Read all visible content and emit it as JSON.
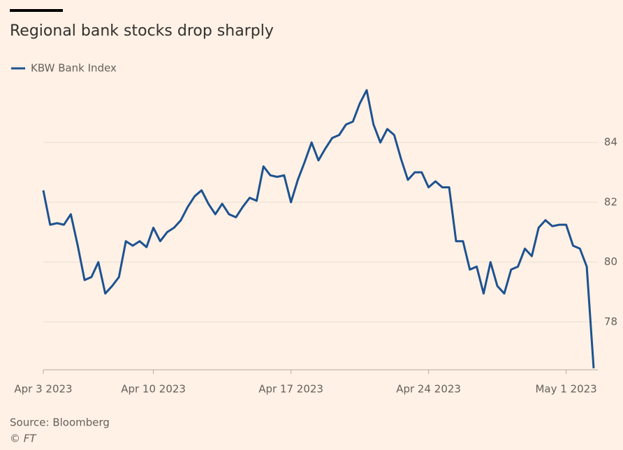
{
  "chart_data": {
    "type": "line",
    "title": "Regional bank stocks drop sharply",
    "source": "Source: Bloomberg",
    "copyright": "© FT",
    "categories": [
      "Apr 3 2023",
      null,
      null,
      null,
      null,
      null,
      null,
      null,
      null,
      null,
      null,
      null,
      null,
      null,
      null,
      null,
      "Apr 10 2023",
      null,
      null,
      null,
      null,
      null,
      null,
      null,
      null,
      null,
      null,
      null,
      null,
      null,
      null,
      null,
      null,
      null,
      null,
      null,
      "Apr 17 2023",
      null,
      null,
      null,
      null,
      null,
      null,
      null,
      null,
      null,
      null,
      null,
      null,
      null,
      null,
      null,
      null,
      null,
      null,
      null,
      "Apr 24 2023",
      null,
      null,
      null,
      null,
      null,
      null,
      null,
      null,
      null,
      null,
      null,
      null,
      null,
      null,
      null,
      null,
      null,
      null,
      null,
      "May 1 2023",
      null,
      null,
      null,
      null
    ],
    "series": [
      {
        "name": "KBW Bank Index",
        "color": "#1d5290",
        "values": [
          82.4,
          81.25,
          81.3,
          81.25,
          81.6,
          80.55,
          79.4,
          79.5,
          80.0,
          78.95,
          79.2,
          79.5,
          80.7,
          80.55,
          80.7,
          80.5,
          81.15,
          80.7,
          81.0,
          81.15,
          81.4,
          81.85,
          82.2,
          82.4,
          81.95,
          81.6,
          81.95,
          81.6,
          81.5,
          81.85,
          82.15,
          82.05,
          83.2,
          82.9,
          82.85,
          82.9,
          82.0,
          82.75,
          83.35,
          84.0,
          83.4,
          83.8,
          84.15,
          84.25,
          84.6,
          84.7,
          85.3,
          85.75,
          84.6,
          84.0,
          84.45,
          84.25,
          83.45,
          82.75,
          83.0,
          83.0,
          82.5,
          82.7,
          82.5,
          82.5,
          80.7,
          80.7,
          79.75,
          79.85,
          78.95,
          80.0,
          79.2,
          78.95,
          79.75,
          79.85,
          80.45,
          80.2,
          81.15,
          81.4,
          81.2,
          81.25,
          81.25,
          80.55,
          80.45,
          79.85,
          76.45
        ]
      }
    ],
    "ylim": [
      76.4,
      86.5
    ],
    "yticks": [
      78,
      80,
      82,
      84
    ],
    "grid": true
  }
}
